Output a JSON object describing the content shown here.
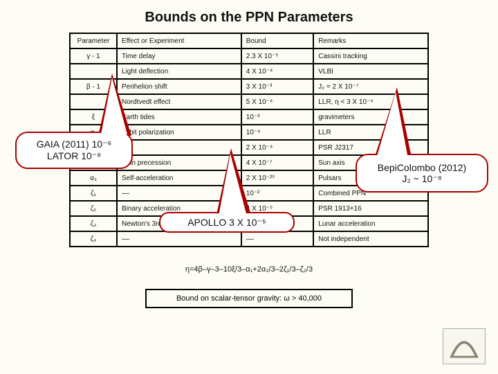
{
  "title": "Bounds on the PPN Parameters",
  "table": {
    "header": {
      "param": "Parameter",
      "effect": "Effect or Experiment",
      "bound": "Bound",
      "remarks": "Remarks"
    },
    "rows": [
      {
        "param": "γ - 1",
        "effect": "Time delay",
        "bound": "2.3 X 10⁻⁵",
        "remarks": "Cassini tracking"
      },
      {
        "param": "",
        "effect": "Light deflection",
        "bound": "4 X 10⁻⁴",
        "remarks": "VLBI"
      },
      {
        "param": "β - 1",
        "effect": "Perihelion shift",
        "bound": "3 X 10⁻³",
        "remarks": "J₂ = 2 X 10⁻⁷"
      },
      {
        "param": "",
        "effect": "Nordtvedt effect",
        "bound": "5 X 10⁻⁴",
        "remarks": "LLR, η < 3 X 10⁻⁴"
      },
      {
        "param": "ξ",
        "effect": "Earth tides",
        "bound": "10⁻³",
        "remarks": "gravimeters"
      },
      {
        "param": "α₁",
        "effect": "Orbit polarization",
        "bound": "10⁻⁴",
        "remarks": "LLR"
      },
      {
        "param": "",
        "effect": "",
        "bound": "2 X 10⁻⁴",
        "remarks": "PSR J2317"
      },
      {
        "param": "α₂",
        "effect": "Spin precession",
        "bound": "4 X 10⁻⁷",
        "remarks": "Sun axis"
      },
      {
        "param": "α₃",
        "effect": "Self-acceleration",
        "bound": "2 X 10⁻²⁰",
        "remarks": "Pulsars"
      },
      {
        "param": "ζ₁",
        "effect": "––",
        "bound": "10⁻²",
        "remarks": "Combined PPN"
      },
      {
        "param": "ζ₂",
        "effect": "Binary acceleration",
        "bound": "4 X 10⁻⁵",
        "remarks": "PSR 1913+16"
      },
      {
        "param": "ζ₃",
        "effect": "Newton's 3rd law",
        "bound": "10⁻⁸",
        "remarks": "Lunar acceleration"
      },
      {
        "param": "ζ₄",
        "effect": "––",
        "bound": "––",
        "remarks": "Not independent"
      }
    ]
  },
  "callouts": {
    "left": {
      "line1": "GAIA (2011) 10⁻⁶",
      "line2": "LATOR 10⁻⁸"
    },
    "right": {
      "line1": "BepiColombo (2012)",
      "line2": "J₂ ~ 10⁻⁸"
    },
    "center": {
      "line1": "APOLLO 3 X 10⁻⁵"
    }
  },
  "eta_line": "η=4β–γ–3–10ξ/3–α₁+2α₂/3–2ζ₁/3–ζ₂/3",
  "bound_box": "Bound on scalar-tensor gravity:  ω > 40,000",
  "colors": {
    "bg": "#fefdf5",
    "callout_border": "#a00",
    "table_border": "#000"
  }
}
